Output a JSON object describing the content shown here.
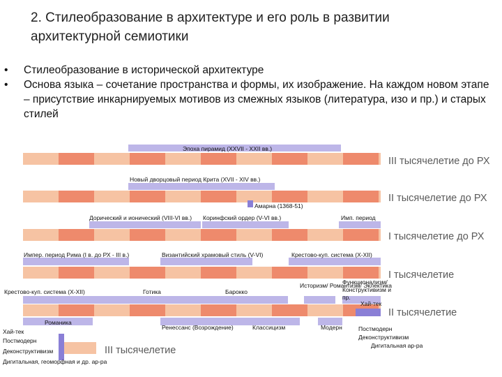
{
  "title": "2. Стилеобразование в архитектуре  и его роль в развитии архитектурной семиотики",
  "bullets": [
    "Стилеобразование в исторической архитектуре",
    "Основа языка – сочетание пространства и формы, их изображение. На каждом новом этапе – присутствие инкарнируемых мотивов  из смежных языков (литература, изо и пр.) и старых стилей"
  ],
  "bullet_marker": "•",
  "eras": [
    "III тысячелетие до РХ",
    "II тысячелетие до РХ",
    "I тысячелетие до РХ",
    "I тысячелетие",
    "II тысячелетие",
    "III тысячелетие"
  ],
  "styles": [
    "Эпоха пирамид (XXVII - XXII вв.)",
    "Новый дворцовый период Крита (XVII - XIV вв.)",
    "Амарна (1368-51)",
    "Дорический и ионический (VIII-VI вв.)",
    "Коринфский ордер (V-VI вв.)",
    "Имп. период",
    "Импер. период Рима (I в. до РХ - III в.)",
    "Византийский храмовый стиль (V-VI)",
    "Крестово-куп. система (X-XII)",
    "Крестово-куп. система (X-XII)",
    "Готика",
    "Барокко",
    "Историзм/ Романтизм/ Эклектика",
    "Функционализм/ Конструктивизм и пр.",
    "Хай-тек",
    "Романика",
    "Ренессанс (Возрождение)",
    "Классицизм",
    "Модерн",
    "Постмодерн",
    "Деконструктивизм",
    "Дигитальная ар-ра",
    "Хай-тек",
    "Постмодерн",
    "Деконструктивизм",
    "Дигитальная, геоморфная и др. ар-ра"
  ],
  "colors": {
    "peach": "#f6c3a3",
    "salmon": "#ee8a6c",
    "lavender": "#b9b1e6",
    "violet": "#8a7fd6"
  }
}
